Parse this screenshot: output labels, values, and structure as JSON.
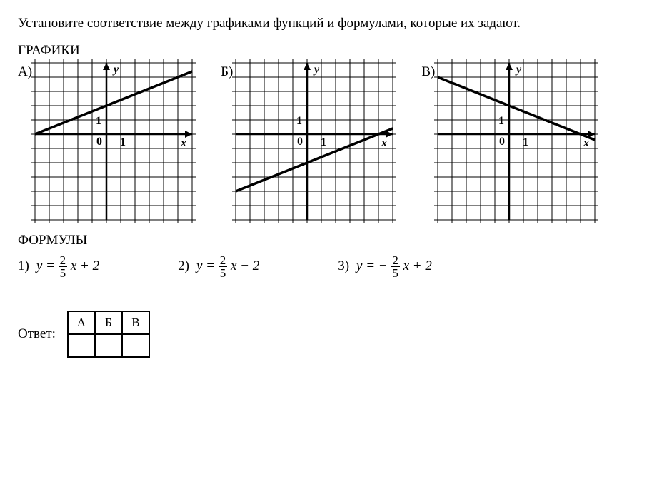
{
  "instruction": "Установите соответствие между графиками функций и формулами, которые их задают.",
  "graphs_title": "ГРАФИКИ",
  "formulas_title": "ФОРМУЛЫ",
  "answer_label": "Ответ:",
  "axis_x": "x",
  "axis_y": "y",
  "tick_0": "0",
  "tick_1": "1",
  "tick_1y": "1",
  "graphs": {
    "labels": [
      "А)",
      "Б)",
      "В)"
    ],
    "size": 220,
    "cells": 11,
    "grid_color": "#000000",
    "line_color": "#000000",
    "bg": "#ffffff",
    "lines": [
      {
        "slope": 0.4,
        "intercept": 2
      },
      {
        "slope": 0.4,
        "intercept": -2
      },
      {
        "slope": -0.4,
        "intercept": 2
      }
    ],
    "x_range": [
      -5,
      6
    ],
    "y_range": [
      -5,
      5
    ],
    "origin_col": 5,
    "origin_row": 5
  },
  "formulas": [
    {
      "n": "1)",
      "prefix": "y =",
      "frac_num": "2",
      "frac_den": "5",
      "suffix": "x + 2"
    },
    {
      "n": "2)",
      "prefix": "y =",
      "frac_num": "2",
      "frac_den": "5",
      "suffix": "x − 2"
    },
    {
      "n": "3)",
      "prefix": "y = −",
      "frac_num": "2",
      "frac_den": "5",
      "suffix": "x + 2"
    }
  ],
  "answer_headers": [
    "А",
    "Б",
    "В"
  ],
  "answer_values": [
    "",
    "",
    ""
  ]
}
